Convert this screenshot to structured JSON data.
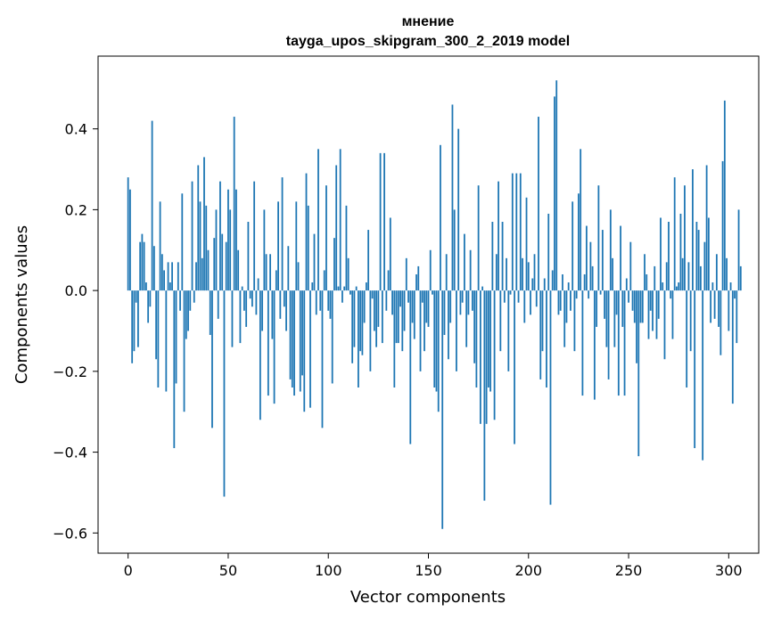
{
  "chart_data": {
    "type": "bar",
    "title_line1": "мнение",
    "title_line2": "tayga_upos_skipgram_300_2_2019 model",
    "xlabel": "Vector components",
    "ylabel": "Components values",
    "xlim": [
      -15,
      315
    ],
    "ylim": [
      -0.65,
      0.58
    ],
    "xticks": [
      0,
      50,
      100,
      150,
      200,
      250,
      300
    ],
    "yticks": [
      -0.6,
      -0.4,
      -0.2,
      0.0,
      0.2,
      0.4
    ],
    "ytick_labels": [
      "−0.6",
      "−0.4",
      "−0.2",
      "0.0",
      "0.2",
      "0.4"
    ],
    "bar_color": "#1f77b4",
    "values": [
      0.28,
      0.25,
      -0.18,
      -0.15,
      -0.03,
      -0.14,
      0.12,
      0.14,
      0.12,
      0.02,
      -0.08,
      -0.04,
      0.42,
      0.11,
      -0.17,
      -0.24,
      0.22,
      0.09,
      0.05,
      -0.25,
      0.07,
      0.02,
      0.07,
      -0.39,
      -0.23,
      0.07,
      -0.05,
      0.24,
      -0.3,
      -0.12,
      -0.1,
      -0.05,
      0.27,
      -0.03,
      0.07,
      0.31,
      0.22,
      0.08,
      0.33,
      0.21,
      0.1,
      -0.11,
      -0.34,
      0.13,
      0.2,
      -0.07,
      0.27,
      0.14,
      -0.51,
      0.12,
      0.25,
      0.2,
      -0.14,
      0.43,
      0.25,
      0.1,
      -0.13,
      0.01,
      -0.05,
      -0.09,
      0.17,
      -0.02,
      -0.04,
      0.27,
      -0.06,
      0.03,
      -0.32,
      -0.1,
      0.2,
      0.09,
      -0.26,
      0.09,
      -0.12,
      -0.28,
      0.05,
      0.22,
      -0.07,
      0.28,
      -0.04,
      -0.1,
      0.11,
      -0.22,
      -0.24,
      -0.26,
      0.22,
      0.07,
      -0.25,
      -0.21,
      -0.3,
      0.29,
      0.21,
      -0.29,
      0.02,
      0.14,
      -0.06,
      0.35,
      -0.05,
      -0.34,
      0.05,
      0.26,
      -0.05,
      -0.07,
      -0.23,
      0.13,
      0.31,
      0.01,
      0.35,
      -0.03,
      0.01,
      0.21,
      0.08,
      -0.01,
      -0.18,
      -0.14,
      0.01,
      -0.24,
      -0.15,
      -0.16,
      -0.08,
      0.02,
      0.15,
      -0.2,
      -0.02,
      -0.1,
      -0.14,
      -0.09,
      0.34,
      -0.13,
      0.34,
      -0.05,
      0.05,
      0.18,
      -0.06,
      -0.24,
      -0.13,
      -0.13,
      -0.04,
      -0.15,
      -0.1,
      0.08,
      -0.03,
      -0.38,
      -0.08,
      -0.12,
      0.04,
      0.06,
      -0.2,
      -0.03,
      -0.15,
      -0.08,
      -0.09,
      0.1,
      -0.01,
      -0.24,
      -0.25,
      -0.3,
      0.36,
      -0.59,
      -0.11,
      0.09,
      -0.17,
      -0.08,
      0.46,
      0.2,
      -0.2,
      0.4,
      -0.06,
      -0.03,
      0.14,
      -0.14,
      -0.06,
      0.1,
      -0.05,
      -0.18,
      -0.24,
      0.26,
      -0.33,
      0.01,
      -0.52,
      -0.33,
      -0.24,
      -0.25,
      0.17,
      -0.32,
      0.09,
      0.27,
      -0.15,
      0.17,
      -0.03,
      0.08,
      -0.2,
      -0.01,
      0.29,
      -0.38,
      0.29,
      -0.03,
      0.29,
      0.08,
      -0.08,
      0.23,
      0.07,
      -0.06,
      0.03,
      0.09,
      -0.04,
      0.43,
      -0.22,
      -0.15,
      0.03,
      -0.24,
      0.19,
      -0.53,
      0.05,
      0.48,
      0.52,
      -0.06,
      -0.05,
      0.04,
      -0.14,
      -0.08,
      0.02,
      -0.05,
      0.22,
      -0.15,
      -0.02,
      0.24,
      0.35,
      -0.26,
      0.04,
      0.16,
      -0.02,
      0.12,
      0.06,
      -0.27,
      -0.09,
      0.26,
      -0.01,
      0.15,
      -0.07,
      -0.14,
      -0.22,
      0.2,
      0.08,
      -0.14,
      -0.06,
      -0.26,
      0.16,
      -0.09,
      -0.26,
      0.03,
      -0.03,
      0.12,
      -0.05,
      -0.08,
      -0.18,
      -0.41,
      -0.08,
      -0.08,
      0.09,
      0.04,
      -0.12,
      -0.05,
      -0.1,
      0.06,
      -0.12,
      -0.07,
      0.18,
      0.02,
      -0.17,
      0.07,
      0.17,
      -0.02,
      -0.12,
      0.28,
      0.01,
      0.02,
      0.19,
      0.08,
      0.26,
      -0.24,
      0.07,
      -0.15,
      0.3,
      -0.39,
      0.17,
      0.15,
      0.06,
      -0.42,
      0.12,
      0.31,
      0.18,
      -0.08,
      0.02,
      -0.07,
      0.09,
      -0.09,
      -0.16,
      0.32,
      0.47,
      0.08,
      -0.1,
      0.02,
      -0.28,
      -0.02,
      -0.13,
      0.2,
      0.06
    ]
  }
}
